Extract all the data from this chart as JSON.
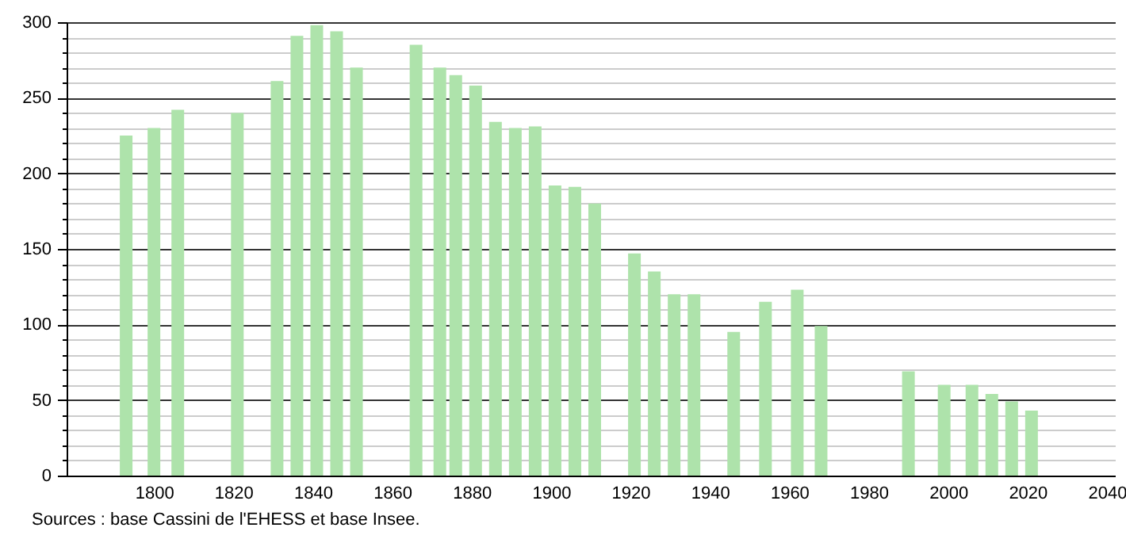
{
  "chart_data": {
    "type": "bar",
    "x": [
      1793,
      1800,
      1806,
      1821,
      1831,
      1836,
      1841,
      1846,
      1851,
      1866,
      1872,
      1876,
      1881,
      1886,
      1891,
      1896,
      1901,
      1906,
      1911,
      1921,
      1926,
      1931,
      1936,
      1946,
      1954,
      1962,
      1968,
      1990,
      1999,
      2006,
      2011,
      2016,
      2021
    ],
    "series": [
      {
        "color": "#aee3ab",
        "values": [
          225,
          230,
          242,
          240,
          261,
          291,
          298,
          294,
          270,
          285,
          270,
          265,
          258,
          234,
          230,
          231,
          192,
          191,
          180,
          147,
          135,
          120,
          120,
          95,
          115,
          123,
          99,
          69,
          60,
          60,
          54,
          49,
          43
        ]
      }
    ],
    "xlim": [
      1780,
      2040
    ],
    "xticks": [
      1800,
      1820,
      1840,
      1860,
      1880,
      1900,
      1920,
      1940,
      1960,
      1980,
      2000,
      2020,
      2040
    ],
    "ylim": [
      0,
      300
    ],
    "yticks": [
      0,
      {
        "value": 10,
        "label": null
      },
      {
        "value": 20,
        "label": null
      },
      {
        "value": 30,
        "label": null
      },
      {
        "value": 40,
        "label": null
      },
      50,
      {
        "value": 60,
        "label": null
      },
      {
        "value": 70,
        "label": null
      },
      {
        "value": 80,
        "label": null
      },
      {
        "value": 90,
        "label": null
      },
      100,
      {
        "value": 110,
        "label": null
      },
      {
        "value": 120,
        "label": null
      },
      {
        "value": 130,
        "label": null
      },
      {
        "value": 140,
        "label": null
      },
      150,
      {
        "value": 160,
        "label": null
      },
      {
        "value": 170,
        "label": null
      },
      {
        "value": 180,
        "label": null
      },
      {
        "value": 190,
        "label": null
      },
      200,
      {
        "value": 210,
        "label": null
      },
      {
        "value": 220,
        "label": null
      },
      {
        "value": 230,
        "label": null
      },
      {
        "value": 240,
        "label": null
      },
      250,
      {
        "value": 260,
        "label": null
      },
      {
        "value": 270,
        "label": null
      },
      {
        "value": 280,
        "label": null
      },
      {
        "value": 290,
        "label": null
      },
      300
    ],
    "grid": "y",
    "annotations": [
      "Sources : base Cassini de l'EHESS et base Insee."
    ]
  }
}
